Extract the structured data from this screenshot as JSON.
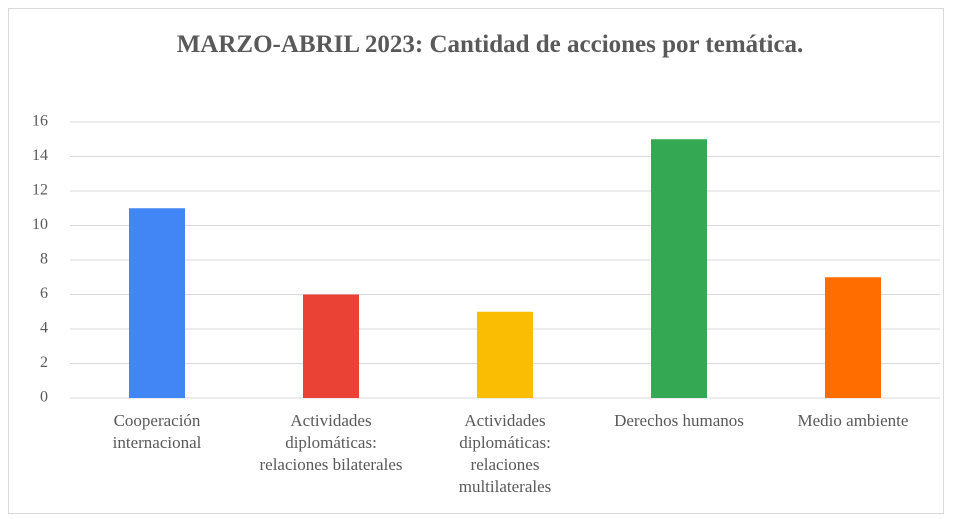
{
  "chart_data": {
    "type": "bar",
    "title": "MARZO-ABRIL 2023: Cantidad de acciones por temática.",
    "categories": [
      "Cooperación internacional",
      "Actividades diplomáticas: relaciones bilaterales",
      "Actividades diplomáticas: relaciones multilaterales",
      "Derechos humanos",
      "Medio ambiente"
    ],
    "values": [
      11,
      6,
      5,
      15,
      7
    ],
    "colors": [
      "#4285f4",
      "#ea4335",
      "#fbbc04",
      "#34a853",
      "#ff6d01"
    ],
    "ylim": [
      0,
      16
    ],
    "yticks": [
      0,
      2,
      4,
      6,
      8,
      10,
      12,
      14,
      16
    ],
    "grid": true
  }
}
